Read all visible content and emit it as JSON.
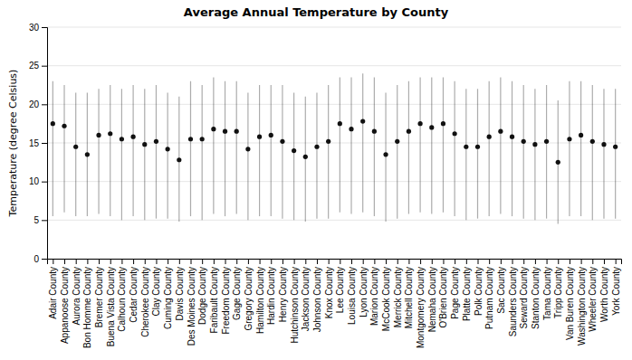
{
  "chart_data": {
    "type": "errorbar",
    "title": "Average Annual Temperature by County",
    "ylabel": "Temperature (degree Celsius)",
    "categories": [
      "Adair County",
      "Appanoose County",
      "Aurora County",
      "Bon Homme County",
      "Bremer County",
      "Buena Vista County",
      "Calhoun County",
      "Cedar County",
      "Cherokee County",
      "Clay County",
      "Cuming County",
      "Davis County",
      "Des Moines County",
      "Dodge County",
      "Faribault County",
      "Freedom County",
      "Gage County",
      "Gregory County",
      "Hamilton County",
      "Hardin County",
      "Henry County",
      "Hutchinson County",
      "Jackson County",
      "Johnson County",
      "Knox County",
      "Lee County",
      "Louisa County",
      "Lyon County",
      "Marion County",
      "McCook County",
      "Merrick County",
      "Mitchell County",
      "Montgomery County",
      "Nemaha County",
      "O'Brien County",
      "Page County",
      "Platte County",
      "Polk County",
      "Putnam County",
      "Sac County",
      "Saunders County",
      "Seward County",
      "Stanton County",
      "Tama County",
      "Tripp County",
      "Van Buren County",
      "Washington County",
      "Wheeler County",
      "Worth County",
      "York County"
    ],
    "values": [
      17.5,
      17.2,
      14.5,
      13.5,
      16.0,
      16.2,
      15.5,
      15.8,
      14.8,
      15.2,
      14.2,
      12.8,
      15.5,
      15.5,
      16.8,
      16.5,
      16.5,
      14.2,
      15.8,
      16.0,
      15.2,
      14.0,
      13.2,
      14.5,
      15.2,
      17.5,
      16.8,
      17.8,
      16.5,
      13.5,
      15.2,
      16.5,
      17.5,
      17.0,
      17.5,
      16.2,
      14.5,
      14.5,
      15.8,
      16.5,
      15.8,
      15.2,
      14.8,
      15.2,
      12.5,
      15.5,
      16.0,
      15.2,
      14.8,
      14.5
    ],
    "min": [
      5.5,
      6.0,
      5.5,
      5.5,
      5.8,
      5.5,
      5.0,
      5.5,
      5.0,
      5.2,
      5.2,
      4.8,
      5.5,
      5.0,
      5.8,
      5.5,
      5.8,
      5.0,
      5.5,
      5.5,
      5.2,
      5.0,
      4.8,
      5.2,
      5.2,
      6.0,
      5.8,
      6.0,
      5.5,
      4.8,
      5.2,
      5.8,
      6.0,
      5.8,
      6.0,
      5.5,
      5.0,
      5.2,
      5.5,
      5.8,
      5.5,
      5.2,
      5.0,
      5.2,
      4.5,
      5.5,
      5.5,
      5.0,
      5.2,
      5.2
    ],
    "max": [
      23.0,
      22.5,
      21.5,
      21.5,
      22.0,
      22.5,
      22.0,
      22.5,
      22.0,
      22.5,
      21.5,
      21.0,
      23.0,
      22.5,
      23.5,
      23.0,
      23.0,
      21.5,
      22.5,
      22.5,
      22.5,
      21.5,
      21.0,
      21.5,
      22.5,
      23.5,
      23.5,
      24.0,
      23.5,
      21.5,
      22.5,
      23.0,
      23.5,
      23.5,
      23.5,
      23.0,
      22.0,
      22.0,
      23.0,
      23.5,
      23.0,
      22.5,
      22.0,
      22.5,
      20.5,
      23.0,
      23.0,
      22.5,
      22.0,
      22.0
    ],
    "color": "#111111",
    "ylim": [
      0,
      30
    ],
    "yticks": [
      0,
      5,
      10,
      15,
      20,
      25,
      30
    ],
    "grid": true
  }
}
